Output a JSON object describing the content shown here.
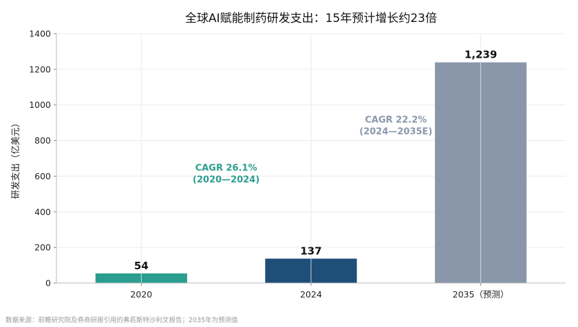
{
  "chart_data": {
    "type": "bar",
    "title": "全球AI赋能制药研发支出：15年预计增长约23倍",
    "xlabel": "",
    "ylabel": "研发支出（亿美元）",
    "ylim": [
      0,
      1400
    ],
    "yticks": [
      0,
      200,
      400,
      600,
      800,
      1000,
      1200,
      1400
    ],
    "categories": [
      "2020",
      "2024",
      "2035（预测）"
    ],
    "values": [
      54,
      137,
      1239
    ],
    "value_labels": [
      "54",
      "137",
      "1,239"
    ],
    "colors": [
      "#2a9d8f",
      "#1f4e79",
      "#8a97ab"
    ],
    "grid": true,
    "annotations": [
      {
        "text_line1": "CAGR 26.1%",
        "text_line2": "(2020—2024)",
        "color": "#2a9d8f",
        "x_between": [
          0,
          1
        ],
        "y": 600
      },
      {
        "text_line1": "CAGR 22.2%",
        "text_line2": "(2024—2035E)",
        "color": "#8a97ab",
        "x_between": [
          1,
          2
        ],
        "y": 870
      }
    ]
  },
  "footnote": "数据来源：前瞻研究院及券商研报引用的弗若斯特沙利文报告；2035年为预测值"
}
